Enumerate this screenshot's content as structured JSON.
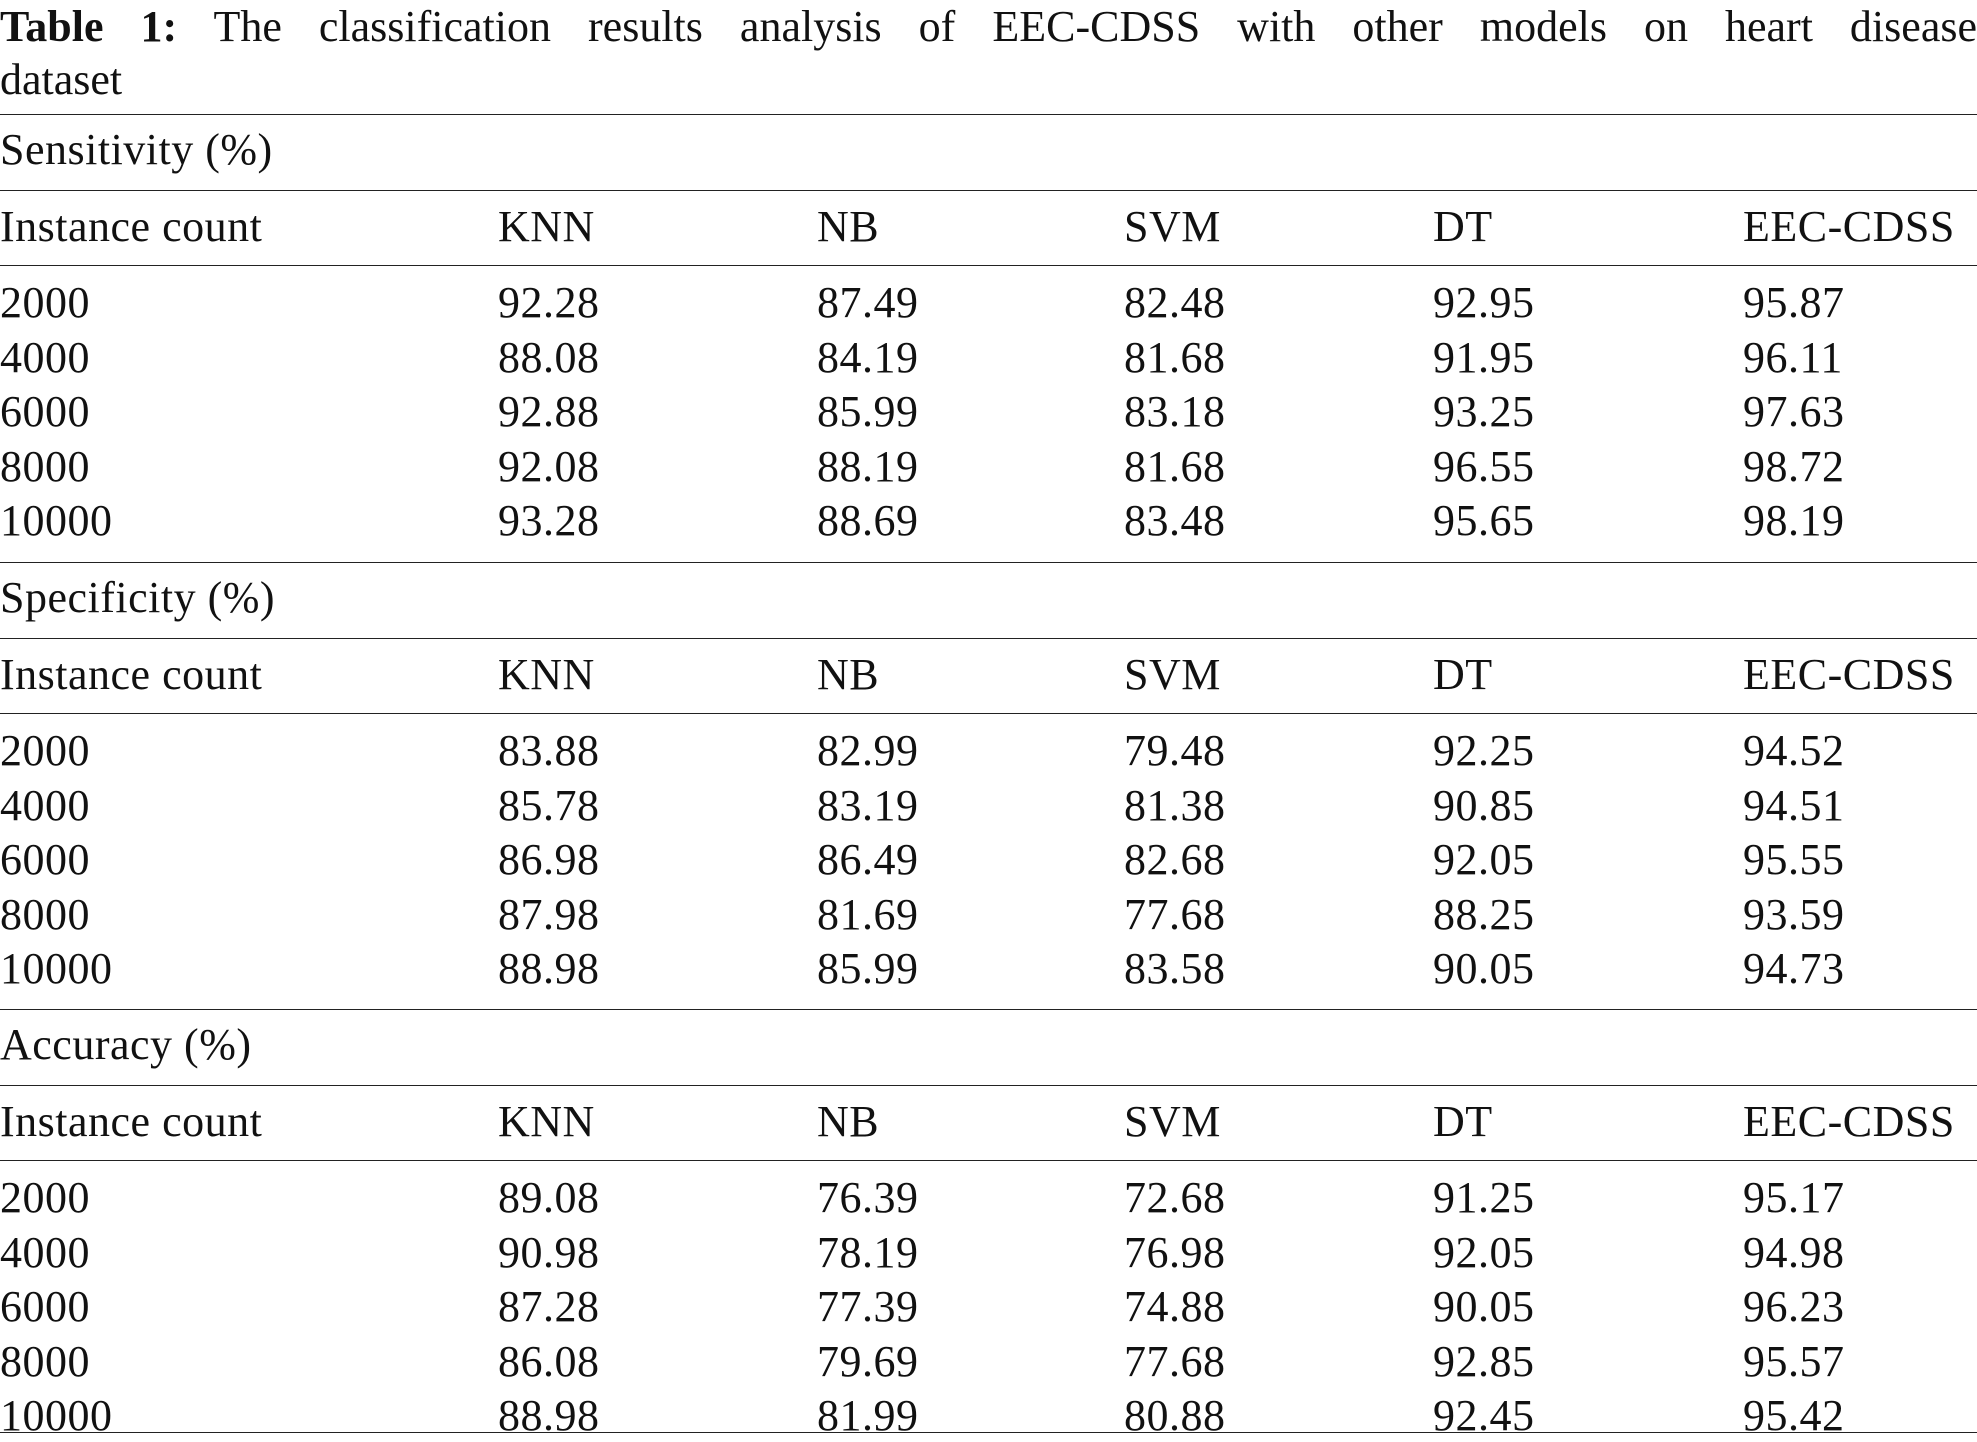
{
  "caption": {
    "label": "Table 1:",
    "text_line1": "The classification results analysis of EEC-CDSS with other models on heart disease",
    "text_line2": "dataset"
  },
  "columns": [
    "Instance count",
    "KNN",
    "NB",
    "SVM",
    "DT",
    "EEC-CDSS"
  ],
  "sections": [
    {
      "title": "Sensitivity (%)",
      "rows": [
        [
          "2000",
          "92.28",
          "87.49",
          "82.48",
          "92.95",
          "95.87"
        ],
        [
          "4000",
          "88.08",
          "84.19",
          "81.68",
          "91.95",
          "96.11"
        ],
        [
          "6000",
          "92.88",
          "85.99",
          "83.18",
          "93.25",
          "97.63"
        ],
        [
          "8000",
          "92.08",
          "88.19",
          "81.68",
          "96.55",
          "98.72"
        ],
        [
          "10000",
          "93.28",
          "88.69",
          "83.48",
          "95.65",
          "98.19"
        ]
      ]
    },
    {
      "title": "Specificity (%)",
      "rows": [
        [
          "2000",
          "83.88",
          "82.99",
          "79.48",
          "92.25",
          "94.52"
        ],
        [
          "4000",
          "85.78",
          "83.19",
          "81.38",
          "90.85",
          "94.51"
        ],
        [
          "6000",
          "86.98",
          "86.49",
          "82.68",
          "92.05",
          "95.55"
        ],
        [
          "8000",
          "87.98",
          "81.69",
          "77.68",
          "88.25",
          "93.59"
        ],
        [
          "10000",
          "88.98",
          "85.99",
          "83.58",
          "90.05",
          "94.73"
        ]
      ]
    },
    {
      "title": "Accuracy (%)",
      "rows": [
        [
          "2000",
          "89.08",
          "76.39",
          "72.68",
          "91.25",
          "95.17"
        ],
        [
          "4000",
          "90.98",
          "78.19",
          "76.98",
          "92.05",
          "94.98"
        ],
        [
          "6000",
          "87.28",
          "77.39",
          "74.88",
          "90.05",
          "96.23"
        ],
        [
          "8000",
          "86.08",
          "79.69",
          "77.68",
          "92.85",
          "95.57"
        ],
        [
          "10000",
          "88.98",
          "81.99",
          "80.88",
          "92.45",
          "95.42"
        ]
      ]
    }
  ]
}
